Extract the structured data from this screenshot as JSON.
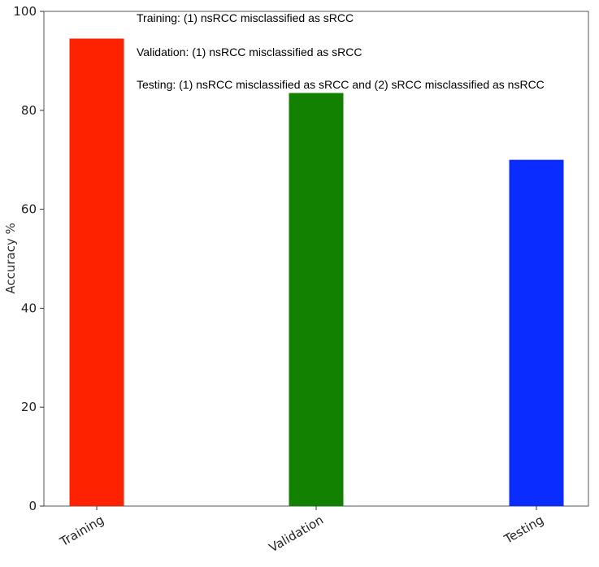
{
  "chart_data": {
    "type": "bar",
    "categories": [
      "Training",
      "Validation",
      "Testing"
    ],
    "values": [
      94.5,
      83.5,
      70.0
    ],
    "colors": [
      "#ff2200",
      "#128000",
      "#0a2cff"
    ],
    "title": "",
    "xlabel": "",
    "ylabel": "Accuracy %",
    "ylim": [
      0,
      100
    ],
    "yticks": [
      0,
      20,
      40,
      60,
      80,
      100
    ],
    "grid": false,
    "annotations": [
      "Training: (1) nsRCC misclassified as sRCC",
      "Validation: (1) nsRCC misclassified as sRCC",
      "Testing: (1) nsRCC misclassified as sRCC and (2) sRCC misclassified as nsRCC"
    ]
  }
}
